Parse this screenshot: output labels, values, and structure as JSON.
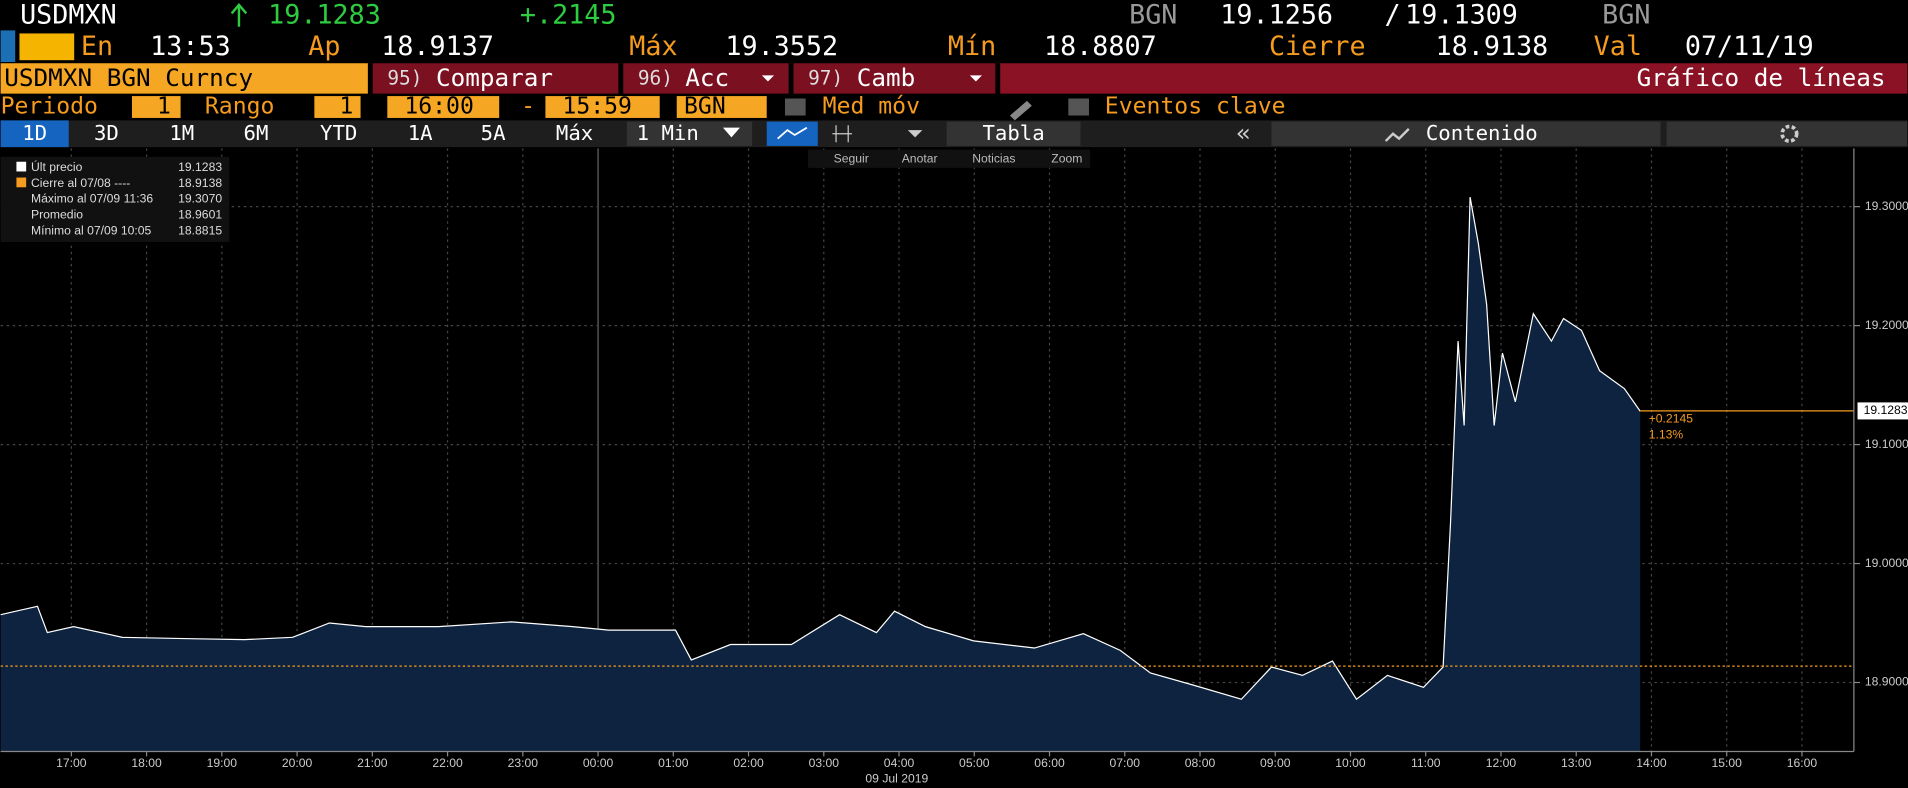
{
  "header": {
    "ticker": "USDMXN",
    "last": "19.1283",
    "change": "+.2145",
    "bid_source": "BGN",
    "bid": "19.1256",
    "separator": "/",
    "ask": "19.1309",
    "ask_source": "BGN"
  },
  "stats": {
    "time_label": "En",
    "time": "13:53",
    "open_label": "Ap",
    "open": "18.9137",
    "high_label": "Máx",
    "high": "19.3552",
    "low_label": "Mín",
    "low": "18.8807",
    "close_label": "Cierre",
    "close": "18.9138",
    "value_date_label": "Val",
    "value_date": "07/11/19"
  },
  "toolbar": {
    "security": "USDMXN BGN Curncy",
    "buttons": [
      {
        "key": "95)",
        "label": "Comparar"
      },
      {
        "key": "96)",
        "label": "Acc"
      },
      {
        "key": "97)",
        "label": "Camb"
      }
    ],
    "chart_type": "Gráfico de líneas"
  },
  "settings": {
    "period_label": "Periodo",
    "period": "1",
    "range_label": "Rango",
    "range": "1",
    "start": "16:00",
    "dash": "-",
    "end": "15:59",
    "source": "BGN",
    "moving_avg": "Med móv",
    "key_events": "Eventos clave"
  },
  "tabs": [
    "1D",
    "3D",
    "1M",
    "6M",
    "YTD",
    "1A",
    "5A",
    "Máx"
  ],
  "interval": "1 Min",
  "table": "Tabla",
  "contents": "Contenido",
  "tools": [
    "Seguir",
    "Anotar",
    "Noticias",
    "Zoom"
  ],
  "legend": [
    {
      "label": "Últ precio",
      "value": "19.1283"
    },
    {
      "label": "Cierre al 07/08 ----",
      "value": "18.9138"
    },
    {
      "label": "Máximo al 07/09 11:36",
      "value": "19.3070"
    },
    {
      "label": "Promedio",
      "value": "18.9601"
    },
    {
      "label": "Mínimo al 07/09 10:05",
      "value": "18.8815"
    }
  ],
  "chart_data": {
    "type": "line",
    "date_label": "09 Jul 2019",
    "series": [
      {
        "color": "#ffffff",
        "fill": "#0d2340",
        "x": [
          0.06,
          0.55,
          0.68,
          1.03,
          1.68,
          2.49,
          3.3,
          3.94,
          4.43,
          4.91,
          5.88,
          6.85,
          7.66,
          8.14,
          9.03,
          9.24,
          9.76,
          10.57,
          11.21,
          11.7,
          11.94,
          12.35,
          12.99,
          13.8,
          14.45,
          14.94,
          15.34,
          15.9,
          16.55,
          16.95,
          17.36,
          17.76,
          18.08,
          18.49,
          18.97,
          19.23,
          19.33,
          19.43,
          19.51,
          19.59,
          19.7,
          19.81,
          19.91,
          20.02,
          20.19,
          20.43,
          20.67,
          20.83,
          21.07,
          21.31,
          21.64,
          21.85
        ],
        "values": [
          18.957,
          18.964,
          18.942,
          18.947,
          18.938,
          18.937,
          18.936,
          18.938,
          18.95,
          18.947,
          18.947,
          18.951,
          18.947,
          18.944,
          18.944,
          18.919,
          18.932,
          18.932,
          18.957,
          18.942,
          18.96,
          18.947,
          18.935,
          18.929,
          18.941,
          18.927,
          18.908,
          18.898,
          18.886,
          18.913,
          18.906,
          18.918,
          18.886,
          18.906,
          18.896,
          18.913,
          19.034,
          19.187,
          19.116,
          19.308,
          19.269,
          19.218,
          19.116,
          19.177,
          19.136,
          19.21,
          19.187,
          19.206,
          19.196,
          19.162,
          19.147,
          19.128
        ]
      }
    ],
    "close_line": {
      "value": 18.9138,
      "color": "#f59b1f"
    },
    "last": {
      "value": 19.1283,
      "color": "#f59b1f",
      "change": "+0.2145",
      "percent": "1.13%"
    },
    "xlim": [
      0.06,
      24.69
    ],
    "xticks": [
      {
        "value": 1,
        "label": "17:00"
      },
      {
        "value": 2,
        "label": "18:00"
      },
      {
        "value": 3,
        "label": "19:00"
      },
      {
        "value": 4,
        "label": "20:00"
      },
      {
        "value": 5,
        "label": "21:00"
      },
      {
        "value": 6,
        "label": "22:00"
      },
      {
        "value": 7,
        "label": "23:00"
      },
      {
        "value": 8,
        "label": "00:00"
      },
      {
        "value": 9,
        "label": "01:00"
      },
      {
        "value": 10,
        "label": "02:00"
      },
      {
        "value": 11,
        "label": "03:00"
      },
      {
        "value": 12,
        "label": "04:00"
      },
      {
        "value": 13,
        "label": "05:00"
      },
      {
        "value": 14,
        "label": "06:00"
      },
      {
        "value": 15,
        "label": "07:00"
      },
      {
        "value": 16,
        "label": "08:00"
      },
      {
        "value": 17,
        "label": "09:00"
      },
      {
        "value": 18,
        "label": "10:00"
      },
      {
        "value": 19,
        "label": "11:00"
      },
      {
        "value": 20,
        "label": "12:00"
      },
      {
        "value": 21,
        "label": "13:00"
      },
      {
        "value": 22,
        "label": "14:00"
      },
      {
        "value": 23,
        "label": "15:00"
      },
      {
        "value": 24,
        "label": "16:00"
      }
    ],
    "ylim": [
      18.842,
      19.349
    ],
    "yticks": [
      {
        "value": 18.9,
        "label": "18.9000"
      },
      {
        "value": 19.0,
        "label": "19.0000"
      },
      {
        "value": 19.1,
        "label": "19.1000"
      },
      {
        "value": 19.2,
        "label": "19.2000"
      },
      {
        "value": 19.3,
        "label": "19.3000"
      }
    ],
    "grid": true
  }
}
